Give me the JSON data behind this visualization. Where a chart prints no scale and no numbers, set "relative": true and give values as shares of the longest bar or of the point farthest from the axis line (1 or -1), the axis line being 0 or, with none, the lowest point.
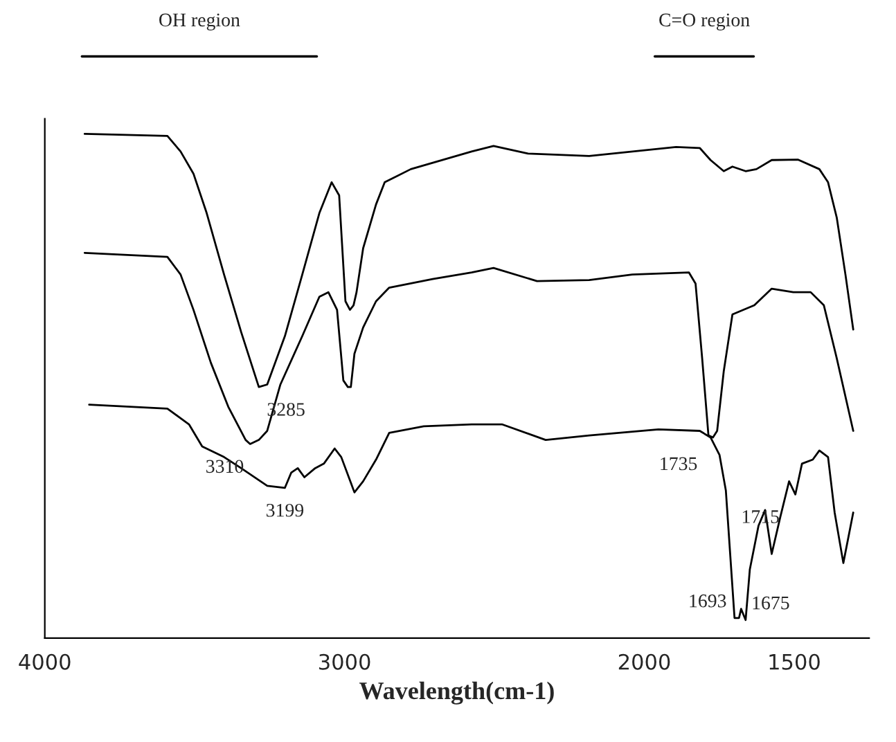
{
  "chart_data": {
    "type": "line",
    "relative": true,
    "xlabel": "Wavelength(cm-1)",
    "xlim": [
      4000,
      1250
    ],
    "xticks": [
      4000,
      3000,
      2000,
      1500
    ],
    "legend": false,
    "grid": false,
    "marker": "none",
    "line_style": "solid",
    "series": [
      {
        "color": "#000000",
        "x": [
          3867,
          3591,
          3547,
          3504,
          3460,
          3402,
          3345,
          3286,
          3258,
          3199,
          3141,
          3084,
          3043,
          3018,
          2997,
          2982,
          2970,
          2960,
          2938,
          2895,
          2866,
          2779,
          2576,
          2503,
          2388,
          2184,
          1894,
          1815,
          1779,
          1735,
          1706,
          1662,
          1626,
          1575,
          1488,
          1416,
          1387,
          1358,
          1329,
          1303
        ],
        "values": [
          1.0,
          0.996,
          0.965,
          0.921,
          0.843,
          0.721,
          0.607,
          0.498,
          0.503,
          0.599,
          0.721,
          0.843,
          0.904,
          0.878,
          0.668,
          0.651,
          0.66,
          0.686,
          0.773,
          0.86,
          0.904,
          0.93,
          0.965,
          0.976,
          0.961,
          0.956,
          0.974,
          0.972,
          0.948,
          0.926,
          0.935,
          0.926,
          0.93,
          0.948,
          0.949,
          0.93,
          0.904,
          0.834,
          0.721,
          0.612
        ]
      },
      {
        "color": "#000000",
        "x": [
          3867,
          3591,
          3547,
          3504,
          3446,
          3388,
          3330,
          3315,
          3286,
          3258,
          3214,
          3141,
          3084,
          3054,
          3025,
          3004,
          2989,
          2979,
          2967,
          2938,
          2895,
          2851,
          2706,
          2576,
          2503,
          2358,
          2184,
          2040,
          1851,
          1829,
          1807,
          1786,
          1771,
          1757,
          1735,
          1706,
          1633,
          1575,
          1503,
          1445,
          1401,
          1358,
          1303
        ],
        "values": [
          0.764,
          0.756,
          0.721,
          0.651,
          0.546,
          0.459,
          0.393,
          0.385,
          0.393,
          0.411,
          0.503,
          0.599,
          0.677,
          0.686,
          0.651,
          0.511,
          0.498,
          0.498,
          0.564,
          0.616,
          0.668,
          0.695,
          0.712,
          0.725,
          0.734,
          0.708,
          0.71,
          0.721,
          0.725,
          0.703,
          0.555,
          0.402,
          0.398,
          0.411,
          0.529,
          0.642,
          0.66,
          0.693,
          0.686,
          0.686,
          0.66,
          0.555,
          0.411
        ]
      },
      {
        "color": "#000000",
        "x": [
          3852,
          3591,
          3519,
          3475,
          3402,
          3345,
          3258,
          3199,
          3178,
          3156,
          3134,
          3098,
          3069,
          3033,
          3011,
          2967,
          2938,
          2895,
          2851,
          2736,
          2576,
          2475,
          2329,
          2184,
          1953,
          1815,
          1779,
          1749,
          1728,
          1713,
          1699,
          1684,
          1677,
          1662,
          1648,
          1619,
          1597,
          1575,
          1546,
          1517,
          1496,
          1474,
          1438,
          1416,
          1387,
          1365,
          1336,
          1303
        ],
        "values": [
          0.463,
          0.455,
          0.424,
          0.38,
          0.359,
          0.337,
          0.302,
          0.298,
          0.328,
          0.337,
          0.319,
          0.337,
          0.346,
          0.376,
          0.359,
          0.289,
          0.311,
          0.354,
          0.407,
          0.42,
          0.424,
          0.424,
          0.393,
          0.402,
          0.414,
          0.411,
          0.398,
          0.363,
          0.293,
          0.162,
          0.04,
          0.04,
          0.058,
          0.036,
          0.136,
          0.223,
          0.254,
          0.167,
          0.241,
          0.311,
          0.285,
          0.346,
          0.354,
          0.372,
          0.359,
          0.249,
          0.149,
          0.249
        ]
      }
    ],
    "annotations": [
      {
        "text": "3285",
        "x": 3285,
        "y": 0.498
      },
      {
        "text": "3310",
        "x": 3310,
        "y": 0.385
      },
      {
        "text": "3199",
        "x": 3199,
        "y": 0.298
      },
      {
        "text": "1735",
        "x": 1771,
        "y": 0.398
      },
      {
        "text": "1715",
        "x": 1728,
        "y": 0.293
      },
      {
        "text": "1693",
        "x": 1693,
        "y": 0.04
      },
      {
        "text": "1675",
        "x": 1675,
        "y": 0.036
      },
      "OH region",
      "C=O region"
    ]
  }
}
